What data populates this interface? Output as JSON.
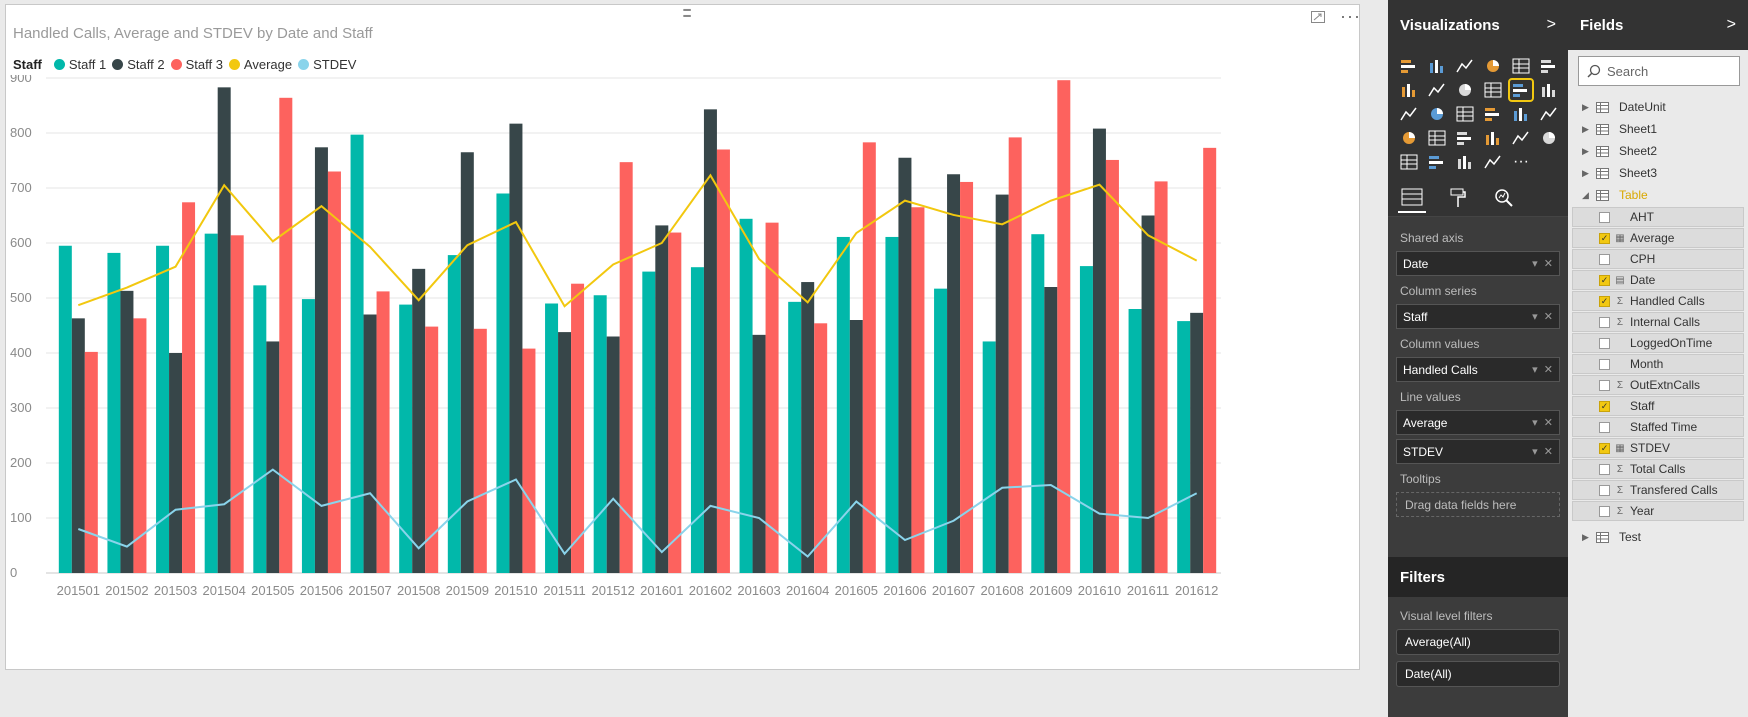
{
  "visual": {
    "title": "Handled Calls, Average and STDEV by Date and Staff",
    "more_label": "···"
  },
  "legend": {
    "title": "Staff",
    "items": [
      {
        "label": "Staff 1",
        "color": "#01b8aa"
      },
      {
        "label": "Staff 2",
        "color": "#374649"
      },
      {
        "label": "Staff 3",
        "color": "#fd625e"
      },
      {
        "label": "Average",
        "color": "#f2c80f"
      },
      {
        "label": "STDEV",
        "color": "#8ad4eb"
      }
    ]
  },
  "chart_data": {
    "type": "bar",
    "title": "Handled Calls, Average and STDEV by Date and Staff",
    "categories": [
      "201501",
      "201502",
      "201503",
      "201504",
      "201505",
      "201506",
      "201507",
      "201508",
      "201509",
      "201510",
      "201511",
      "201512",
      "201601",
      "201602",
      "201603",
      "201604",
      "201605",
      "201606",
      "201607",
      "201608",
      "201609",
      "201610",
      "201611",
      "201612"
    ],
    "series": [
      {
        "name": "Staff 1",
        "kind": "bar",
        "color": "#01b8aa",
        "values": [
          595,
          582,
          595,
          617,
          523,
          498,
          797,
          488,
          578,
          690,
          490,
          505,
          548,
          556,
          644,
          493,
          611,
          611,
          517,
          421,
          616,
          558,
          480,
          458
        ]
      },
      {
        "name": "Staff 2",
        "kind": "bar",
        "color": "#374649",
        "values": [
          463,
          513,
          400,
          883,
          421,
          774,
          470,
          553,
          765,
          817,
          438,
          430,
          632,
          843,
          433,
          529,
          460,
          755,
          725,
          688,
          520,
          808,
          650,
          473
        ]
      },
      {
        "name": "Staff 3",
        "kind": "bar",
        "color": "#fd625e",
        "values": [
          402,
          463,
          674,
          614,
          864,
          730,
          512,
          448,
          444,
          408,
          526,
          747,
          619,
          770,
          637,
          454,
          783,
          665,
          711,
          792,
          896,
          751,
          712,
          773
        ]
      },
      {
        "name": "Average",
        "kind": "line",
        "color": "#f2c80f",
        "values": [
          487,
          519,
          557,
          705,
          603,
          667,
          593,
          496,
          596,
          638,
          485,
          561,
          600,
          723,
          571,
          492,
          618,
          677,
          651,
          634,
          677,
          706,
          614,
          568
        ]
      },
      {
        "name": "STDEV",
        "kind": "line",
        "color": "#8ad4eb",
        "values": [
          80,
          48,
          115,
          125,
          188,
          122,
          145,
          45,
          130,
          170,
          35,
          135,
          38,
          122,
          100,
          30,
          130,
          60,
          95,
          155,
          160,
          108,
          100,
          145
        ]
      }
    ],
    "ylim": [
      0,
      900
    ],
    "yticks": [
      0,
      100,
      200,
      300,
      400,
      500,
      600,
      700,
      800,
      900
    ],
    "grid": true,
    "legend_position": "top-left"
  },
  "viz_pane": {
    "title": "Visualizations",
    "chevron": ">",
    "icons": [
      "stacked-bar-icon",
      "stacked-column-icon",
      "clustered-bar-icon",
      "clustered-column-icon",
      "100-bar-icon",
      "100-column-icon",
      "line-chart-icon",
      "area-chart-icon",
      "stacked-area-icon",
      "line-column-icon",
      "line-clustered-column-icon",
      "ribbon-chart-icon",
      "scatter-icon",
      "pie-chart-icon",
      "treemap-icon",
      "map-icon",
      "table-icon",
      "matrix-icon",
      "filled-map-icon",
      "funnel-icon",
      "gauge-icon",
      "multirow-card-icon",
      "card-icon",
      "kpi-icon",
      "slicer-icon",
      "donut-icon",
      "r-visual-icon",
      "globe-icon",
      "more-icon"
    ],
    "wells": [
      {
        "label": "Shared axis",
        "pills": [
          "Date"
        ]
      },
      {
        "label": "Column series",
        "pills": [
          "Staff"
        ]
      },
      {
        "label": "Column values",
        "pills": [
          "Handled Calls"
        ]
      },
      {
        "label": "Line values",
        "pills": [
          "Average",
          "STDEV"
        ]
      },
      {
        "label": "Tooltips",
        "pills": []
      }
    ],
    "tooltip_drop": "Drag data fields here"
  },
  "filters": {
    "title": "Filters",
    "visual_level_label": "Visual level filters",
    "items": [
      "Average(All)",
      "Date(All)"
    ]
  },
  "fields_pane": {
    "title": "Fields",
    "chevron": ">",
    "search_placeholder": "Search",
    "tables_before": [
      "DateUnit",
      "Sheet1",
      "Sheet2",
      "Sheet3"
    ],
    "expanded_table": "Table",
    "fields": [
      {
        "name": "AHT",
        "checked": false,
        "type": ""
      },
      {
        "name": "Average",
        "checked": true,
        "type": "calc"
      },
      {
        "name": "CPH",
        "checked": false,
        "type": ""
      },
      {
        "name": "Date",
        "checked": true,
        "type": "date"
      },
      {
        "name": "Handled Calls",
        "checked": true,
        "type": "sum"
      },
      {
        "name": "Internal Calls",
        "checked": false,
        "type": "sum"
      },
      {
        "name": "LoggedOnTime",
        "checked": false,
        "type": ""
      },
      {
        "name": "Month",
        "checked": false,
        "type": ""
      },
      {
        "name": "OutExtnCalls",
        "checked": false,
        "type": "sum"
      },
      {
        "name": "Staff",
        "checked": true,
        "type": ""
      },
      {
        "name": "Staffed Time",
        "checked": false,
        "type": ""
      },
      {
        "name": "STDEV",
        "checked": true,
        "type": "calc"
      },
      {
        "name": "Total Calls",
        "checked": false,
        "type": "sum"
      },
      {
        "name": "Transfered Calls",
        "checked": false,
        "type": "sum"
      },
      {
        "name": "Year",
        "checked": false,
        "type": "sum"
      }
    ],
    "tables_after": [
      "Test"
    ]
  }
}
